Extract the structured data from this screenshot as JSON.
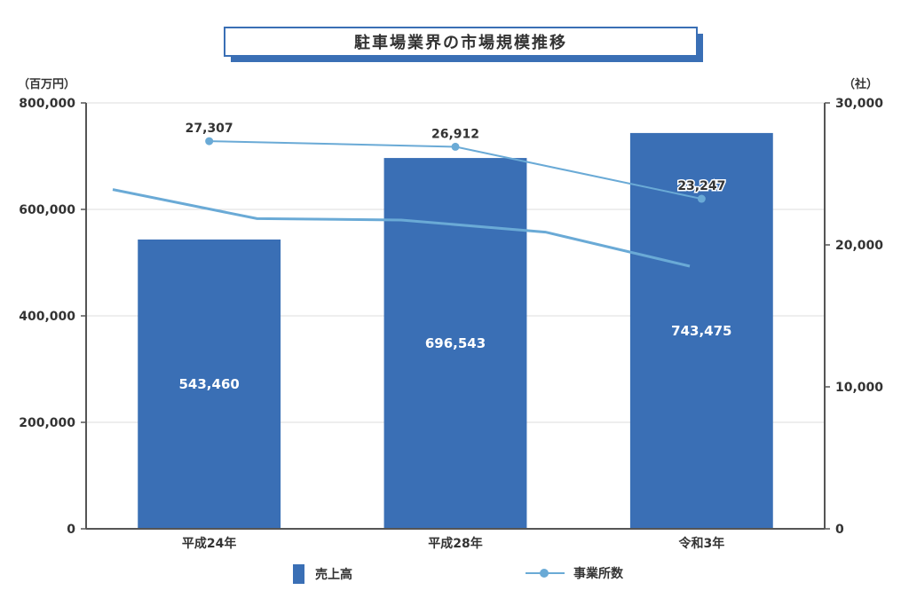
{
  "chart_data": {
    "type": "bar",
    "title": "駐車場業界の市場規模推移",
    "left_unit": "（百万円）",
    "right_unit": "（社）",
    "categories": [
      "平成24年",
      "平成28年",
      "令和3年"
    ],
    "y_left": {
      "min": 0,
      "max": 800000,
      "ticks": [
        0,
        200000,
        400000,
        600000,
        800000
      ],
      "tick_labels": [
        "0",
        "200,000",
        "400,000",
        "600,000",
        "800,000"
      ]
    },
    "y_right": {
      "min": 0,
      "max": 30000,
      "ticks": [
        0,
        10000,
        20000,
        30000
      ],
      "tick_labels": [
        "0",
        "10,000",
        "20,000",
        "30,000"
      ]
    },
    "series": [
      {
        "name": "売上高",
        "type": "bar",
        "axis": "left",
        "color": "#3a6fb5",
        "values": [
          543460,
          696543,
          743475
        ],
        "labels": [
          "543,460",
          "696,543",
          "743,475"
        ]
      },
      {
        "name": "事業所数",
        "type": "line",
        "axis": "right",
        "color": "#6aaad6",
        "values": [
          27307,
          26912,
          23247
        ],
        "labels": [
          "27,307",
          "26,912",
          "23,247"
        ]
      }
    ],
    "trend_line": {
      "axis": "right",
      "color": "#6aaad6",
      "values": [
        23900,
        21850,
        21750,
        20900,
        18500
      ]
    },
    "grid": true,
    "legend_position": "bottom"
  }
}
